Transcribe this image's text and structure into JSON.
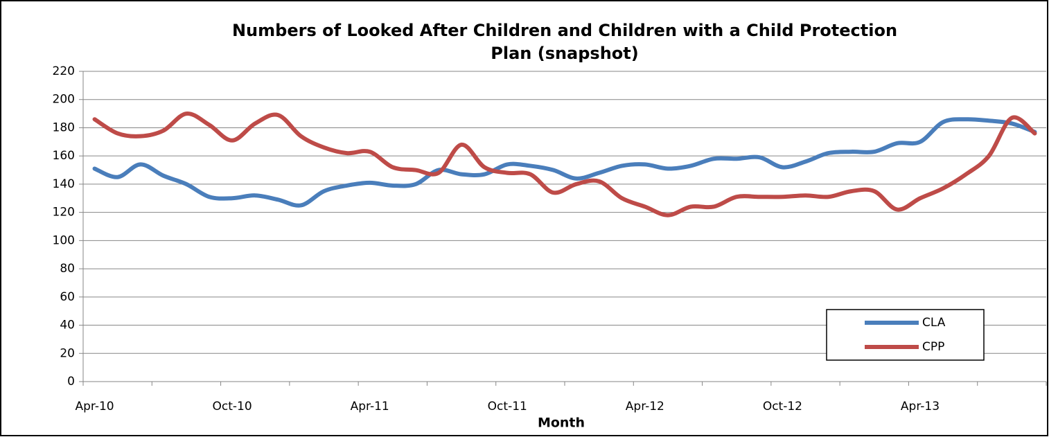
{
  "chart_data": {
    "type": "line",
    "title": "Numbers of Looked After Children and Children with a Child Protection Plan (snapshot)",
    "x_label": "Month",
    "categories": [
      "Apr-10",
      null,
      null,
      null,
      null,
      null,
      "Oct-10",
      null,
      null,
      null,
      null,
      null,
      "Apr-11",
      null,
      null,
      null,
      null,
      null,
      "Oct-11",
      null,
      null,
      null,
      null,
      null,
      "Apr-12",
      null,
      null,
      null,
      null,
      null,
      "Oct-12",
      null,
      null,
      null,
      null,
      null,
      "Apr-13",
      null,
      null,
      null,
      null,
      null
    ],
    "series": [
      {
        "name": "CLA",
        "color": "#4a7ebb",
        "values": [
          151,
          145,
          154,
          146,
          140,
          131,
          130,
          132,
          129,
          125,
          135,
          139,
          141,
          139,
          140,
          150,
          147,
          147,
          154,
          153,
          150,
          144,
          148,
          153,
          154,
          151,
          153,
          158,
          158,
          159,
          152,
          156,
          162,
          163,
          163,
          169,
          170,
          184,
          186,
          185,
          183,
          177
        ]
      },
      {
        "name": "CPP",
        "color": "#be4b48",
        "values": [
          186,
          176,
          174,
          178,
          190,
          182,
          171,
          183,
          189,
          174,
          166,
          162,
          163,
          152,
          150,
          148,
          168,
          152,
          148,
          147,
          134,
          140,
          142,
          130,
          124,
          118,
          124,
          124,
          131,
          131,
          131,
          132,
          131,
          135,
          135,
          122,
          130,
          137,
          147,
          160,
          187,
          176
        ]
      }
    ],
    "ylim": [
      0,
      220
    ],
    "yticks": [
      0,
      20,
      40,
      60,
      80,
      100,
      120,
      140,
      160,
      180,
      200,
      220
    ],
    "grid": true,
    "legend": "lower right"
  }
}
